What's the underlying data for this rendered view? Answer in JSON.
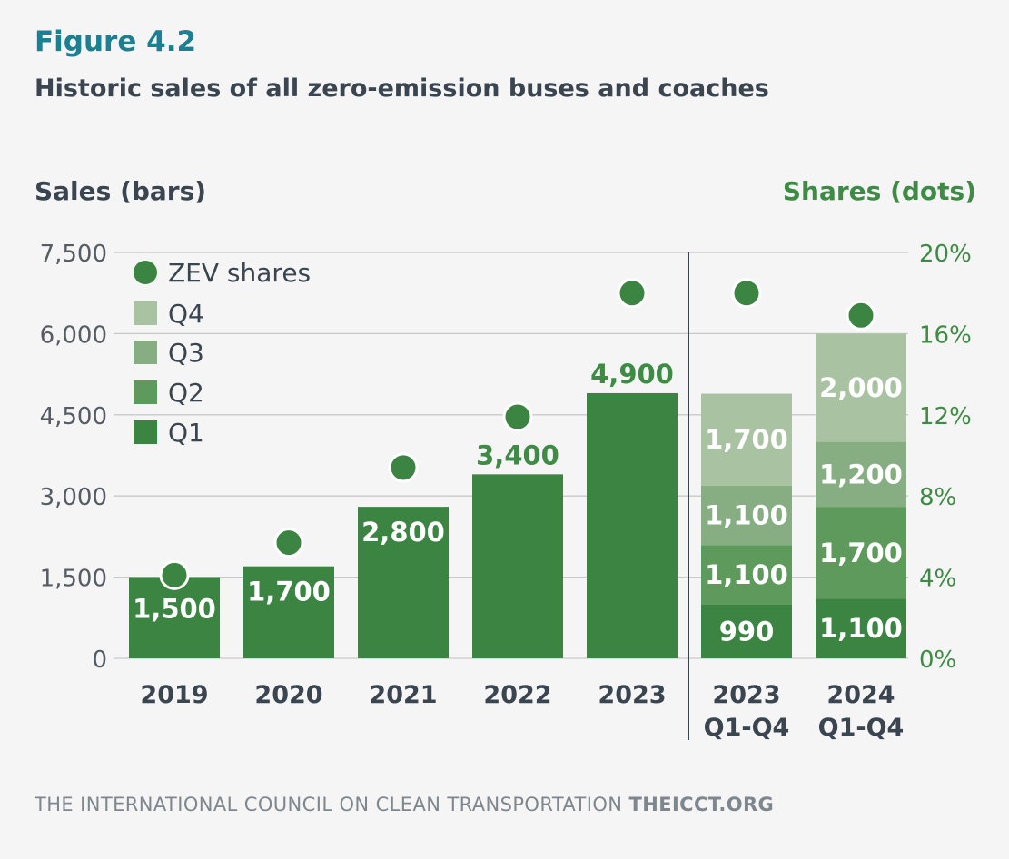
{
  "header": {
    "figure_label": "Figure 4.2",
    "title": "Historic sales of all zero-emission buses and coaches"
  },
  "footer": {
    "org": "THE INTERNATIONAL COUNCIL ON CLEAN TRANSPORTATION",
    "site": "THEICCT.ORG"
  },
  "colors": {
    "q1": "#3b8442",
    "q2": "#5e9a5c",
    "q3": "#86ae82",
    "q4": "#a9c3a2",
    "dot": "#3b8442",
    "grid": "#c9c9c9",
    "divider": "#3a4550"
  },
  "chart_data": {
    "type": "bar",
    "ylabel_left": "Sales (bars)",
    "ylabel_right": "Shares (dots)",
    "ylim_left": [
      0,
      7500
    ],
    "yticks_left": [
      "0",
      "1,500",
      "3,000",
      "4,500",
      "6,000",
      "7,500"
    ],
    "ylim_right": [
      0,
      20
    ],
    "yticks_right": [
      "0%",
      "4%",
      "8%",
      "12%",
      "16%",
      "20%"
    ],
    "grid": true,
    "legend_position": "top-left",
    "legend": [
      "ZEV shares",
      "Q4",
      "Q3",
      "Q2",
      "Q1"
    ],
    "annual": {
      "categories": [
        "2019",
        "2020",
        "2021",
        "2022",
        "2023"
      ],
      "values": [
        1500,
        1700,
        2800,
        3400,
        4900
      ],
      "value_labels": [
        "1,500",
        "1,700",
        "2,800",
        "3,400",
        "4,900"
      ],
      "shares_pct": [
        4.1,
        5.7,
        9.4,
        11.9,
        18.0
      ]
    },
    "quarterly": {
      "categories": [
        {
          "line1": "2023",
          "line2": "Q1-Q4"
        },
        {
          "line1": "2024",
          "line2": "Q1-Q4"
        }
      ],
      "series": [
        {
          "name": "Q1",
          "values": [
            990,
            1100
          ],
          "labels": [
            "990",
            "1,100"
          ]
        },
        {
          "name": "Q2",
          "values": [
            1100,
            1700
          ],
          "labels": [
            "1,100",
            "1,700"
          ]
        },
        {
          "name": "Q3",
          "values": [
            1100,
            1200
          ],
          "labels": [
            "1,100",
            "1,200"
          ]
        },
        {
          "name": "Q4",
          "values": [
            1700,
            2000
          ],
          "labels": [
            "1,700",
            "2,000"
          ]
        }
      ],
      "shares_pct": [
        18.0,
        16.9
      ]
    }
  }
}
